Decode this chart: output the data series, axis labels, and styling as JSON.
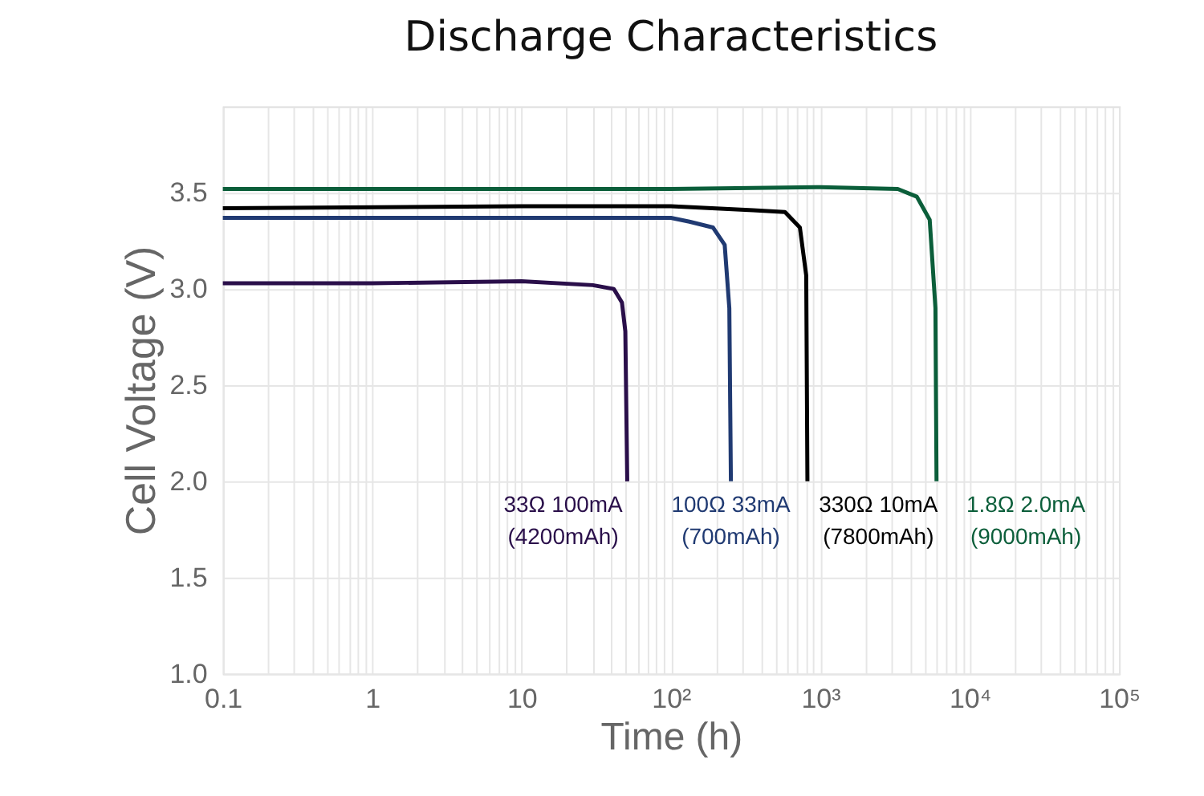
{
  "chart_data": {
    "type": "line",
    "title": "Discharge Characteristics",
    "xlabel": "Time (h)",
    "ylabel": "Cell Voltage (V)",
    "log": "x",
    "grid": true,
    "legend": false,
    "marker": "none",
    "line_style": "solid",
    "xlim": [
      0.1,
      100000
    ],
    "ylim": [
      1.0,
      3.95
    ],
    "xticks": [
      {
        "value": 0.1,
        "label": "0.1"
      },
      {
        "value": 0.2,
        "label": null
      },
      {
        "value": 0.3,
        "label": null
      },
      {
        "value": 0.4,
        "label": null
      },
      {
        "value": 0.5,
        "label": null
      },
      {
        "value": 0.6,
        "label": null
      },
      {
        "value": 0.7,
        "label": null
      },
      {
        "value": 0.8,
        "label": null
      },
      {
        "value": 0.9,
        "label": null
      },
      {
        "value": 1,
        "label": "1"
      },
      {
        "value": 2,
        "label": null
      },
      {
        "value": 3,
        "label": null
      },
      {
        "value": 4,
        "label": null
      },
      {
        "value": 5,
        "label": null
      },
      {
        "value": 6,
        "label": null
      },
      {
        "value": 7,
        "label": null
      },
      {
        "value": 8,
        "label": null
      },
      {
        "value": 9,
        "label": null
      },
      {
        "value": 10,
        "label": "10"
      },
      {
        "value": 20,
        "label": null
      },
      {
        "value": 30,
        "label": null
      },
      {
        "value": 40,
        "label": null
      },
      {
        "value": 50,
        "label": null
      },
      {
        "value": 60,
        "label": null
      },
      {
        "value": 70,
        "label": null
      },
      {
        "value": 80,
        "label": null
      },
      {
        "value": 90,
        "label": null
      },
      {
        "value": 100,
        "label": "10²"
      },
      {
        "value": 200,
        "label": null
      },
      {
        "value": 300,
        "label": null
      },
      {
        "value": 400,
        "label": null
      },
      {
        "value": 500,
        "label": null
      },
      {
        "value": 600,
        "label": null
      },
      {
        "value": 700,
        "label": null
      },
      {
        "value": 800,
        "label": null
      },
      {
        "value": 900,
        "label": null
      },
      {
        "value": 1000,
        "label": "10³"
      },
      {
        "value": 2000,
        "label": null
      },
      {
        "value": 3000,
        "label": null
      },
      {
        "value": 4000,
        "label": null
      },
      {
        "value": 5000,
        "label": null
      },
      {
        "value": 6000,
        "label": null
      },
      {
        "value": 7000,
        "label": null
      },
      {
        "value": 8000,
        "label": null
      },
      {
        "value": 9000,
        "label": null
      },
      {
        "value": 10000,
        "label": "10⁴"
      },
      {
        "value": 20000,
        "label": null
      },
      {
        "value": 30000,
        "label": null
      },
      {
        "value": 40000,
        "label": null
      },
      {
        "value": 50000,
        "label": null
      },
      {
        "value": 60000,
        "label": null
      },
      {
        "value": 70000,
        "label": null
      },
      {
        "value": 80000,
        "label": null
      },
      {
        "value": 90000,
        "label": null
      },
      {
        "value": 100000,
        "label": "10⁵"
      }
    ],
    "yticks": [
      {
        "value": 1,
        "label": "1.0"
      },
      {
        "value": 1.5,
        "label": "1.5"
      },
      {
        "value": 2,
        "label": "2.0"
      },
      {
        "value": 2.5,
        "label": "2.5"
      },
      {
        "value": 3,
        "label": "3.0"
      },
      {
        "value": 3.5,
        "label": "3.5"
      }
    ],
    "series": [
      {
        "color": "#2a0f4a",
        "x": [
          0.1,
          1,
          10,
          30,
          41.5,
          47,
          49.5,
          51
        ],
        "values": [
          3.03,
          3.03,
          3.04,
          3.02,
          3.0,
          2.93,
          2.78,
          2.0
        ]
      },
      {
        "color": "#203a72",
        "x": [
          0.1,
          10,
          100,
          133,
          191,
          229,
          246,
          252
        ],
        "values": [
          3.37,
          3.37,
          3.37,
          3.35,
          3.32,
          3.23,
          2.9,
          2.0
        ]
      },
      {
        "color": "#000000",
        "x": [
          0.1,
          10,
          100,
          355,
          580,
          730,
          805,
          820
        ],
        "values": [
          3.42,
          3.43,
          3.43,
          3.41,
          3.4,
          3.32,
          3.07,
          2.0
        ]
      },
      {
        "color": "#0b5e3a",
        "x": [
          0.1,
          100,
          1000,
          3300,
          4430,
          5400,
          5900,
          6000
        ],
        "values": [
          3.52,
          3.52,
          3.53,
          3.52,
          3.48,
          3.36,
          2.9,
          2.0
        ]
      }
    ],
    "annotations": [
      "33Ω 100mA\n(4200mAh)",
      "100Ω 33mA\n(700mAh)",
      "330Ω 10mA\n(7800mAh)",
      "1.8Ω 2.0mA\n(9000mAh)"
    ]
  }
}
